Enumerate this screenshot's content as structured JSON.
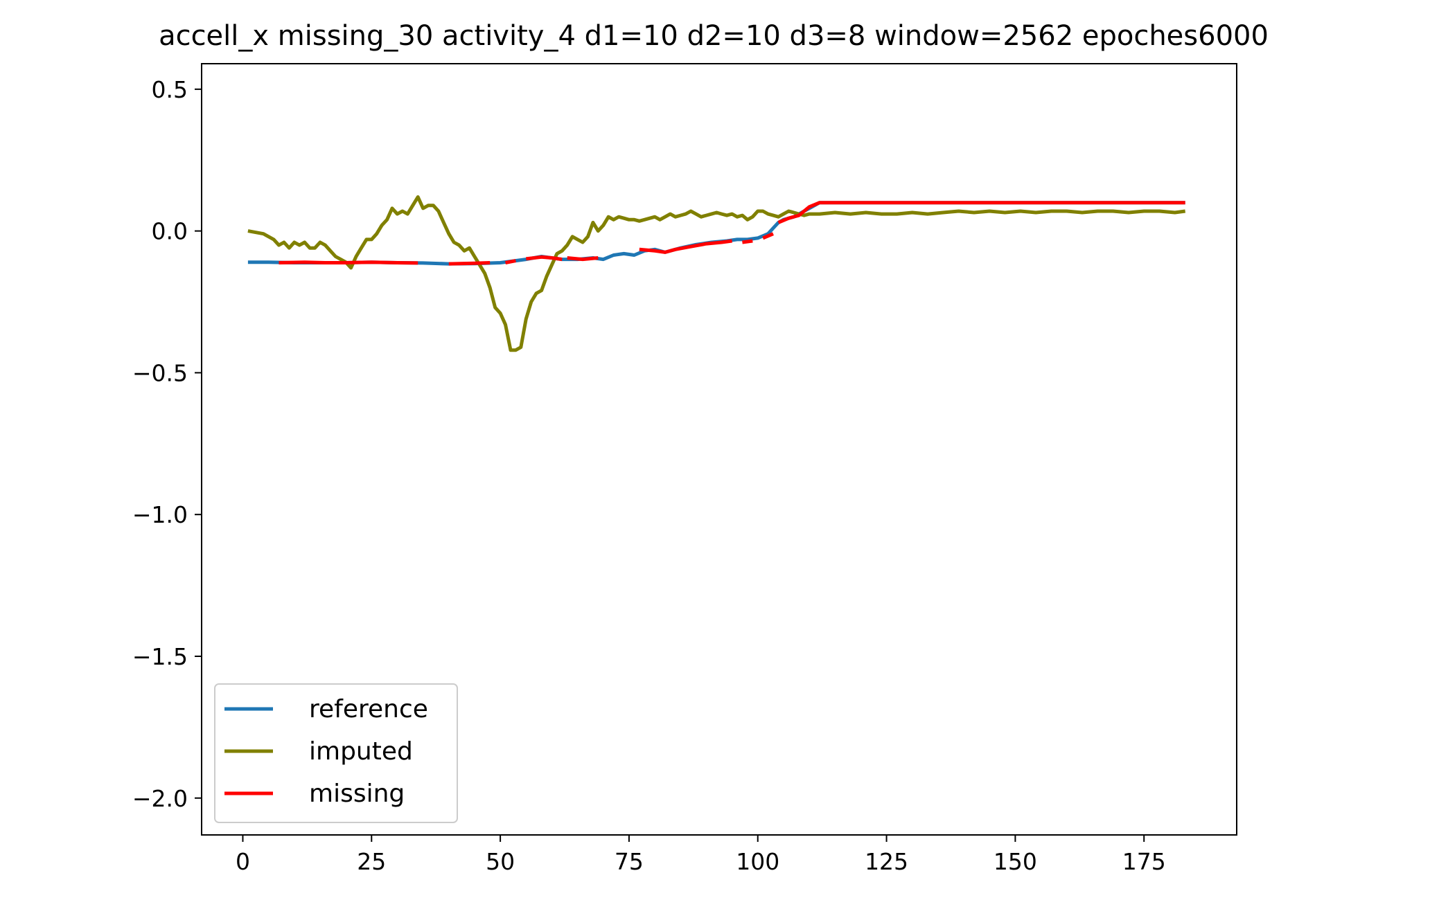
{
  "chart_data": {
    "type": "line",
    "title": "accell_x missing_30 activity_4 d1=10 d2=10 d3=8 window=2562 epoches6000",
    "xlabel": "",
    "ylabel": "",
    "xlim": [
      -8,
      193
    ],
    "ylim": [
      -2.13,
      0.59
    ],
    "x_ticks": [
      0,
      25,
      50,
      75,
      100,
      125,
      150,
      175
    ],
    "x_tick_labels": [
      "0",
      "25",
      "50",
      "75",
      "100",
      "125",
      "150",
      "175"
    ],
    "y_ticks": [
      0.5,
      0.0,
      -0.5,
      -1.0,
      -1.5,
      -2.0
    ],
    "y_tick_labels": [
      "0.5",
      "0.0",
      "−0.5",
      "−1.0",
      "−1.5",
      "−2.0"
    ],
    "grid": false,
    "legend_position": "lower-left",
    "series": [
      {
        "name": "reference",
        "color": "#1f77b4",
        "points": [
          [
            1,
            -0.11
          ],
          [
            5,
            -0.11
          ],
          [
            10,
            -0.112
          ],
          [
            15,
            -0.112
          ],
          [
            20,
            -0.112
          ],
          [
            25,
            -0.11
          ],
          [
            30,
            -0.112
          ],
          [
            35,
            -0.113
          ],
          [
            40,
            -0.116
          ],
          [
            45,
            -0.115
          ],
          [
            50,
            -0.112
          ],
          [
            55,
            -0.1
          ],
          [
            58,
            -0.09
          ],
          [
            62,
            -0.1
          ],
          [
            65,
            -0.1
          ],
          [
            68,
            -0.095
          ],
          [
            70,
            -0.1
          ],
          [
            72,
            -0.085
          ],
          [
            74,
            -0.08
          ],
          [
            76,
            -0.085
          ],
          [
            78,
            -0.07
          ],
          [
            80,
            -0.065
          ],
          [
            82,
            -0.075
          ],
          [
            85,
            -0.06
          ],
          [
            88,
            -0.048
          ],
          [
            91,
            -0.04
          ],
          [
            94,
            -0.035
          ],
          [
            96,
            -0.03
          ],
          [
            98,
            -0.03
          ],
          [
            100,
            -0.025
          ],
          [
            102,
            -0.01
          ],
          [
            103,
            0.01
          ],
          [
            104,
            0.03
          ],
          [
            105,
            0.04
          ],
          [
            107,
            0.05
          ],
          [
            108,
            0.06
          ],
          [
            110,
            0.08
          ],
          [
            112,
            0.1
          ],
          [
            120,
            0.1
          ],
          [
            140,
            0.1
          ],
          [
            160,
            0.1
          ],
          [
            183,
            0.1
          ]
        ]
      },
      {
        "name": "imputed",
        "color": "#808000",
        "points": [
          [
            1,
            0.0
          ],
          [
            4,
            -0.01
          ],
          [
            6,
            -0.03
          ],
          [
            7,
            -0.05
          ],
          [
            8,
            -0.04
          ],
          [
            9,
            -0.06
          ],
          [
            10,
            -0.04
          ],
          [
            11,
            -0.05
          ],
          [
            12,
            -0.04
          ],
          [
            13,
            -0.06
          ],
          [
            14,
            -0.06
          ],
          [
            15,
            -0.04
          ],
          [
            16,
            -0.05
          ],
          [
            17,
            -0.07
          ],
          [
            18,
            -0.09
          ],
          [
            19,
            -0.1
          ],
          [
            20,
            -0.11
          ],
          [
            21,
            -0.13
          ],
          [
            22,
            -0.09
          ],
          [
            23,
            -0.06
          ],
          [
            24,
            -0.03
          ],
          [
            25,
            -0.03
          ],
          [
            26,
            -0.01
          ],
          [
            27,
            0.02
          ],
          [
            28,
            0.04
          ],
          [
            29,
            0.08
          ],
          [
            30,
            0.06
          ],
          [
            31,
            0.07
          ],
          [
            32,
            0.06
          ],
          [
            33,
            0.09
          ],
          [
            34,
            0.12
          ],
          [
            35,
            0.08
          ],
          [
            36,
            0.09
          ],
          [
            37,
            0.09
          ],
          [
            38,
            0.07
          ],
          [
            39,
            0.03
          ],
          [
            40,
            -0.01
          ],
          [
            41,
            -0.04
          ],
          [
            42,
            -0.05
          ],
          [
            43,
            -0.07
          ],
          [
            44,
            -0.06
          ],
          [
            45,
            -0.09
          ],
          [
            46,
            -0.12
          ],
          [
            47,
            -0.15
          ],
          [
            48,
            -0.2
          ],
          [
            49,
            -0.27
          ],
          [
            50,
            -0.29
          ],
          [
            51,
            -0.33
          ],
          [
            52,
            -0.42
          ],
          [
            53,
            -0.42
          ],
          [
            54,
            -0.41
          ],
          [
            55,
            -0.31
          ],
          [
            56,
            -0.25
          ],
          [
            57,
            -0.22
          ],
          [
            58,
            -0.21
          ],
          [
            59,
            -0.16
          ],
          [
            60,
            -0.12
          ],
          [
            61,
            -0.08
          ],
          [
            62,
            -0.07
          ],
          [
            63,
            -0.05
          ],
          [
            64,
            -0.02
          ],
          [
            65,
            -0.03
          ],
          [
            66,
            -0.04
          ],
          [
            67,
            -0.02
          ],
          [
            68,
            0.03
          ],
          [
            69,
            0.0
          ],
          [
            70,
            0.02
          ],
          [
            71,
            0.05
          ],
          [
            72,
            0.04
          ],
          [
            73,
            0.05
          ],
          [
            74,
            0.045
          ],
          [
            75,
            0.04
          ],
          [
            76,
            0.04
          ],
          [
            77,
            0.035
          ],
          [
            78,
            0.04
          ],
          [
            80,
            0.05
          ],
          [
            81,
            0.04
          ],
          [
            82,
            0.05
          ],
          [
            83,
            0.06
          ],
          [
            84,
            0.05
          ],
          [
            85,
            0.055
          ],
          [
            86,
            0.06
          ],
          [
            87,
            0.07
          ],
          [
            88,
            0.06
          ],
          [
            89,
            0.05
          ],
          [
            90,
            0.055
          ],
          [
            91,
            0.06
          ],
          [
            92,
            0.065
          ],
          [
            93,
            0.06
          ],
          [
            94,
            0.055
          ],
          [
            95,
            0.06
          ],
          [
            96,
            0.05
          ],
          [
            97,
            0.055
          ],
          [
            98,
            0.04
          ],
          [
            99,
            0.05
          ],
          [
            100,
            0.07
          ],
          [
            101,
            0.07
          ],
          [
            102,
            0.06
          ],
          [
            103,
            0.055
          ],
          [
            104,
            0.05
          ],
          [
            105,
            0.06
          ],
          [
            106,
            0.07
          ],
          [
            107,
            0.065
          ],
          [
            108,
            0.06
          ],
          [
            109,
            0.055
          ],
          [
            110,
            0.06
          ],
          [
            112,
            0.06
          ],
          [
            115,
            0.065
          ],
          [
            118,
            0.06
          ],
          [
            121,
            0.065
          ],
          [
            124,
            0.06
          ],
          [
            127,
            0.06
          ],
          [
            130,
            0.065
          ],
          [
            133,
            0.06
          ],
          [
            136,
            0.065
          ],
          [
            139,
            0.07
          ],
          [
            142,
            0.065
          ],
          [
            145,
            0.07
          ],
          [
            148,
            0.065
          ],
          [
            151,
            0.07
          ],
          [
            154,
            0.065
          ],
          [
            157,
            0.07
          ],
          [
            160,
            0.07
          ],
          [
            163,
            0.065
          ],
          [
            166,
            0.07
          ],
          [
            169,
            0.07
          ],
          [
            172,
            0.065
          ],
          [
            175,
            0.07
          ],
          [
            178,
            0.07
          ],
          [
            181,
            0.065
          ],
          [
            183,
            0.07
          ]
        ]
      },
      {
        "name": "missing",
        "color": "#ff0000",
        "segments": [
          [
            [
              7,
              -0.112
            ],
            [
              12,
              -0.11
            ],
            [
              16,
              -0.112
            ],
            [
              20,
              -0.112
            ],
            [
              25,
              -0.11
            ],
            [
              30,
              -0.112
            ],
            [
              34,
              -0.113
            ]
          ],
          [
            [
              40,
              -0.116
            ],
            [
              45,
              -0.114
            ],
            [
              48,
              -0.112
            ]
          ],
          [
            [
              51,
              -0.112
            ],
            [
              53,
              -0.105
            ]
          ],
          [
            [
              55,
              -0.098
            ],
            [
              58,
              -0.092
            ],
            [
              60,
              -0.095
            ],
            [
              62,
              -0.1
            ]
          ],
          [
            [
              63,
              -0.095
            ],
            [
              66,
              -0.1
            ],
            [
              69,
              -0.095
            ]
          ],
          [
            [
              77,
              -0.065
            ],
            [
              80,
              -0.07
            ],
            [
              82,
              -0.075
            ],
            [
              84,
              -0.065
            ],
            [
              87,
              -0.055
            ],
            [
              90,
              -0.045
            ],
            [
              93,
              -0.04
            ],
            [
              95,
              -0.035
            ]
          ],
          [
            [
              97,
              -0.04
            ],
            [
              99,
              -0.035
            ]
          ],
          [
            [
              101,
              -0.025
            ],
            [
              103,
              -0.01
            ]
          ],
          [
            [
              104,
              0.03
            ],
            [
              106,
              0.045
            ],
            [
              108,
              0.055
            ],
            [
              110,
              0.085
            ],
            [
              112,
              0.1
            ],
            [
              120,
              0.1
            ],
            [
              140,
              0.1
            ],
            [
              160,
              0.1
            ],
            [
              183,
              0.1
            ]
          ]
        ]
      }
    ]
  }
}
